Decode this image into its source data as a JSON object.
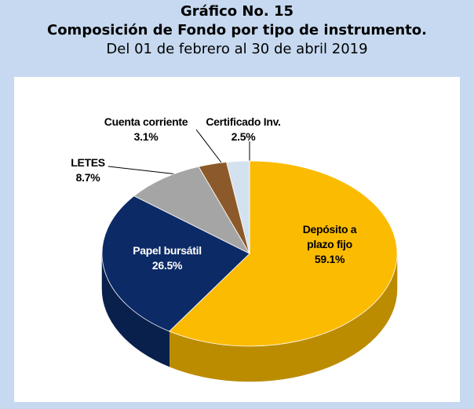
{
  "chart_data": {
    "type": "pie",
    "title": "Gráfico No. 15",
    "subtitle": "Composición de Fondo por tipo de instrumento.",
    "period": "Del 01 de febrero al 30 de abril 2019",
    "categories": [
      "Depósito a plazo fijo",
      "Papel bursátil",
      "LETES",
      "Cuenta corriente",
      "Certificado Inv."
    ],
    "values": [
      59.1,
      26.5,
      8.7,
      3.1,
      2.5
    ],
    "value_labels": [
      "59.1%",
      "26.5%",
      "8.7%",
      "3.1%",
      "2.5%"
    ],
    "colors": [
      "#fbbb00",
      "#0c2a66",
      "#a5a5a5",
      "#8c5a2a",
      "#d3e2ee"
    ]
  }
}
